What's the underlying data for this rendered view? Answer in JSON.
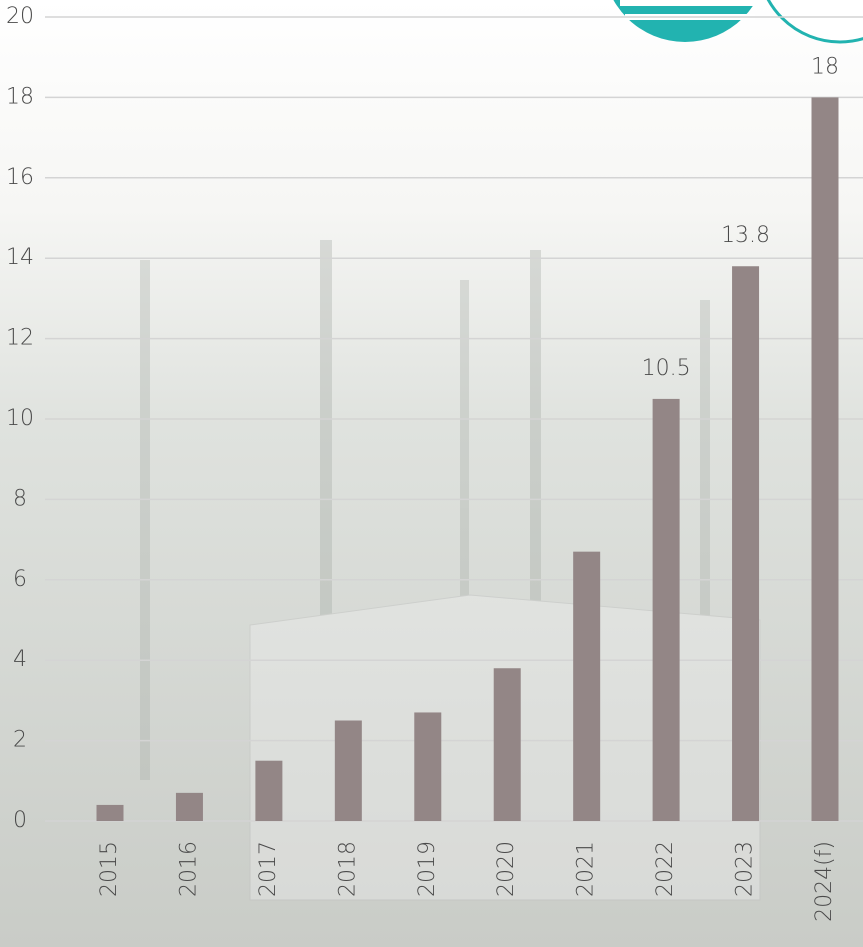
{
  "chart_data": {
    "type": "bar",
    "categories": [
      "2015",
      "2016",
      "2017",
      "2018",
      "2019",
      "2020",
      "2021",
      "2022",
      "2023",
      "2024(f)"
    ],
    "values": [
      0.4,
      0.7,
      1.5,
      2.5,
      2.7,
      3.8,
      6.7,
      10.5,
      13.8,
      18
    ],
    "value_labels": [
      null,
      null,
      null,
      null,
      null,
      null,
      null,
      "10.5",
      "13.8",
      "18"
    ],
    "color": "#938686",
    "ylim": [
      0,
      20
    ],
    "yticks": [
      0,
      2,
      4,
      6,
      8,
      10,
      12,
      14,
      16,
      18,
      20
    ],
    "grid": true
  }
}
